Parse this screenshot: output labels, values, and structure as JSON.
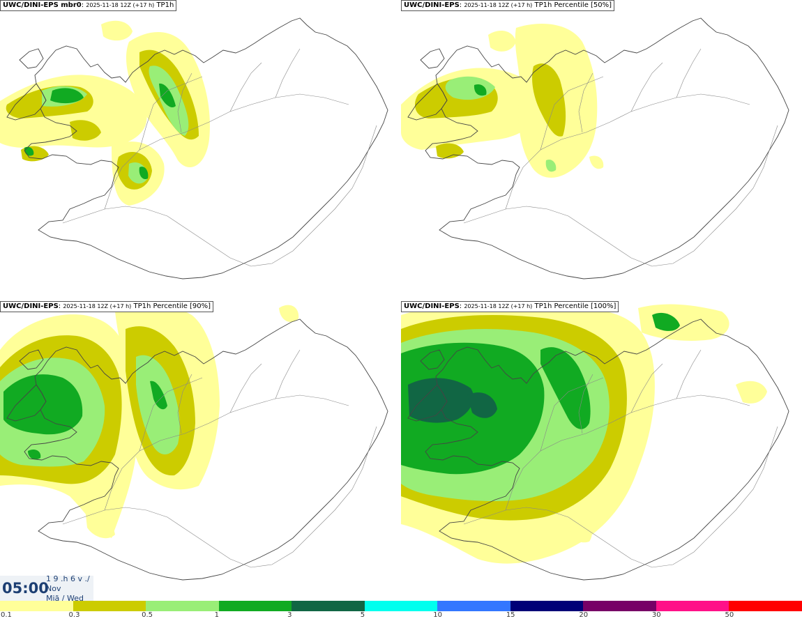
{
  "panels": [
    {
      "model": "UWC/DINI-EPS mbr0",
      "run": "2025-11-18 12Z (+17 h)",
      "field": "TP1h",
      "intensity": 1
    },
    {
      "model": "UWC/DINI-EPS",
      "run": "2025-11-18 12Z (+17 h)",
      "field": "TP1h Percentile [50%]",
      "intensity": 0
    },
    {
      "model": "UWC/DINI-EPS",
      "run": "2025-11-18 12Z (+17 h)",
      "field": "TP1h Percentile [90%]",
      "intensity": 2
    },
    {
      "model": "UWC/DINI-EPS",
      "run": "2025-11-18 12Z (+17 h)",
      "field": "TP1h Percentile [100%]",
      "intensity": 3
    }
  ],
  "time": {
    "hour": "05:00",
    "line1": "1 9 .h 6 v ./",
    "line2": "Nov",
    "line3": "Miã / Wed"
  },
  "legend": {
    "colors": [
      "#ffff99",
      "#cccc00",
      "#99ee77",
      "#11aa22",
      "#116644",
      "#00ffee",
      "#3377ff",
      "#000077",
      "#770066",
      "#ff1188",
      "#ff0000"
    ],
    "labels": [
      "0.1",
      "0.3",
      "0.5",
      "1",
      "3",
      "5",
      "10",
      "15",
      "20",
      "30",
      "50"
    ]
  }
}
